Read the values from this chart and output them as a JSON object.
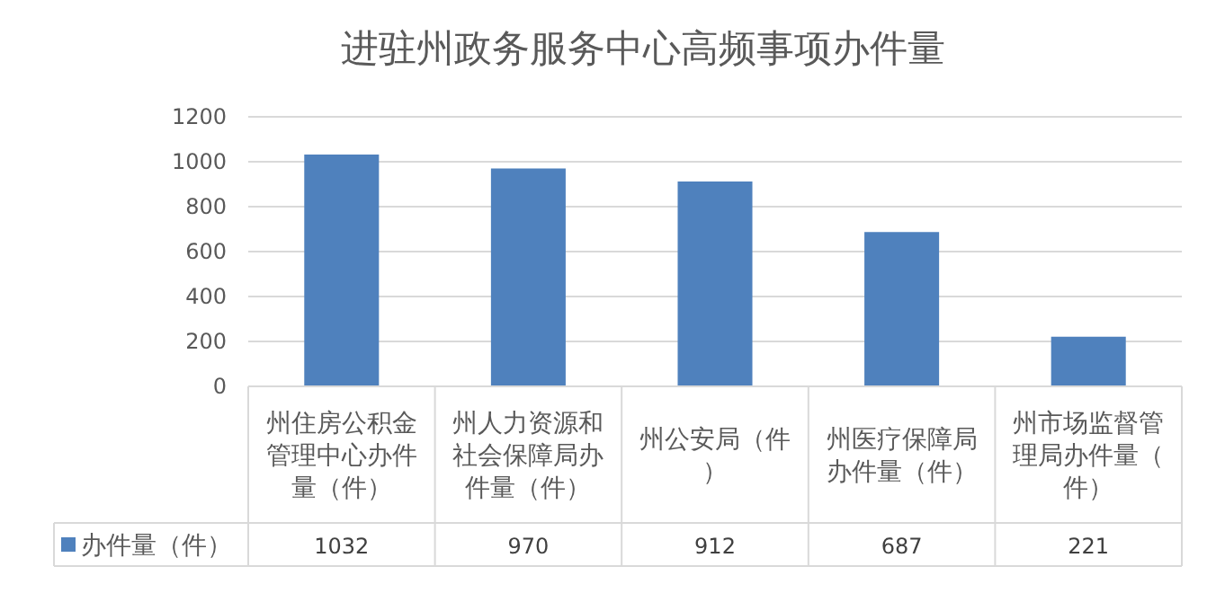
{
  "chart_data": {
    "type": "bar",
    "title": "进驻州政务服务中心高频事项办件量",
    "categories": [
      "州住房公积金管理中心办件量（件）",
      "州人力资源和社会保障局办件量（件）",
      "州公安局（件）",
      "州医疗保障局办件量（件）",
      "州市场监督管理局办件量（件）"
    ],
    "series": [
      {
        "name": "办件量（件）",
        "color": "#4f81bd",
        "values": [
          1032,
          970,
          912,
          687,
          221
        ]
      }
    ],
    "ylim": [
      0,
      1200
    ],
    "yticks": [
      0,
      200,
      400,
      600,
      800,
      1000,
      1200
    ],
    "grid": "y",
    "data_labels": true
  }
}
